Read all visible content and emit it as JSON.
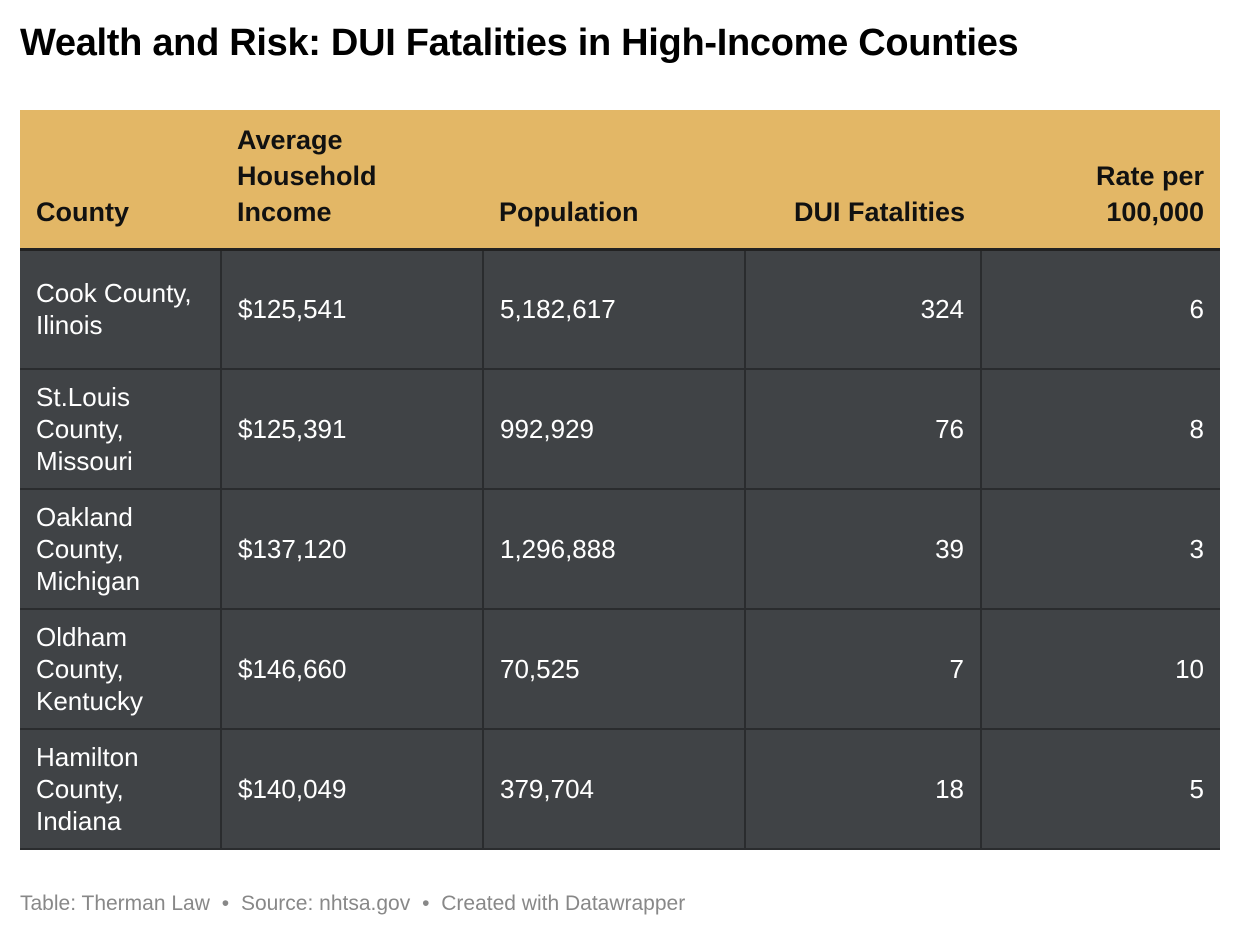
{
  "title": "Wealth and Risk: DUI Fatalities in High-Income Counties",
  "chart_data": {
    "type": "table",
    "columns": [
      "County",
      "Average Household Income",
      "Population",
      "DUI Fatalities",
      "Rate per 100,000"
    ],
    "rows": [
      {
        "county": "Cook County, Ilinois",
        "income": "$125,541",
        "population": "5,182,617",
        "fatalities": "324",
        "rate": "6"
      },
      {
        "county": "St.Louis County, Missouri",
        "income": "$125,391",
        "population": "992,929",
        "fatalities": "76",
        "rate": "8"
      },
      {
        "county": "Oakland County, Michigan",
        "income": "$137,120",
        "population": "1,296,888",
        "fatalities": "39",
        "rate": "3"
      },
      {
        "county": "Oldham County, Kentucky",
        "income": "$146,660",
        "population": "70,525",
        "fatalities": "7",
        "rate": "10"
      },
      {
        "county": "Hamilton County, Indiana",
        "income": "$140,049",
        "population": "379,704",
        "fatalities": "18",
        "rate": "5"
      }
    ]
  },
  "colors": {
    "header_bg": "#e3b766",
    "row_bg": "#404346",
    "row_text": "#ffffff",
    "footer_text": "#888888"
  },
  "footer": {
    "table_credit": "Table: Therman Law",
    "source": "Source: nhtsa.gov",
    "created_with": "Created with Datawrapper",
    "separator": "•"
  }
}
